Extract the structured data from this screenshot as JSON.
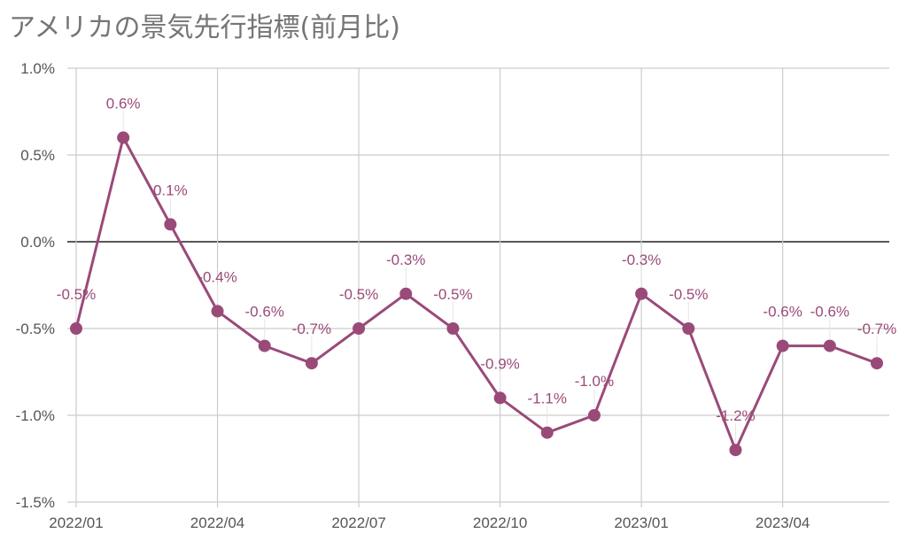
{
  "chart_data": {
    "type": "line",
    "title": "アメリカの景気先行指標(前月比)",
    "xlabel": "",
    "ylabel": "",
    "x": [
      "2022/01",
      "2022/02",
      "2022/03",
      "2022/04",
      "2022/05",
      "2022/06",
      "2022/07",
      "2022/08",
      "2022/09",
      "2022/10",
      "2022/11",
      "2022/12",
      "2023/01",
      "2023/02",
      "2023/03",
      "2023/04",
      "2023/05",
      "2023/06"
    ],
    "series": [
      {
        "values": [
          -0.5,
          0.6,
          0.1,
          -0.4,
          -0.6,
          -0.7,
          -0.5,
          -0.3,
          -0.5,
          -0.9,
          -1.1,
          -1.0,
          -0.3,
          -0.5,
          -1.2,
          -0.6,
          -0.6,
          -0.7
        ]
      }
    ],
    "data_labels": [
      "-0.5%",
      "0.6%",
      "0.1%",
      "-0.4%",
      "-0.6%",
      "-0.7%",
      "-0.5%",
      "-0.3%",
      "-0.5%",
      "-0.9%",
      "-1.1%",
      "-1.0%",
      "-0.3%",
      "-0.5%",
      "-1.2%",
      "-0.6%",
      "-0.6%",
      "-0.7%"
    ],
    "x_tick_labels": [
      "2022/01",
      "2022/04",
      "2022/07",
      "2022/10",
      "2023/01",
      "2023/04"
    ],
    "y_tick_values": [
      1.0,
      0.5,
      0.0,
      -0.5,
      -1.0,
      -1.5
    ],
    "y_tick_labels": [
      "1.0%",
      "0.5%",
      "0.0%",
      "-0.5%",
      "-1.0%",
      "-1.5%"
    ],
    "ylim": [
      -1.5,
      1.0
    ],
    "grid": true,
    "line_color": "#9a4a78",
    "zero_line_color": "#222222",
    "grid_color": "#cccccc"
  }
}
